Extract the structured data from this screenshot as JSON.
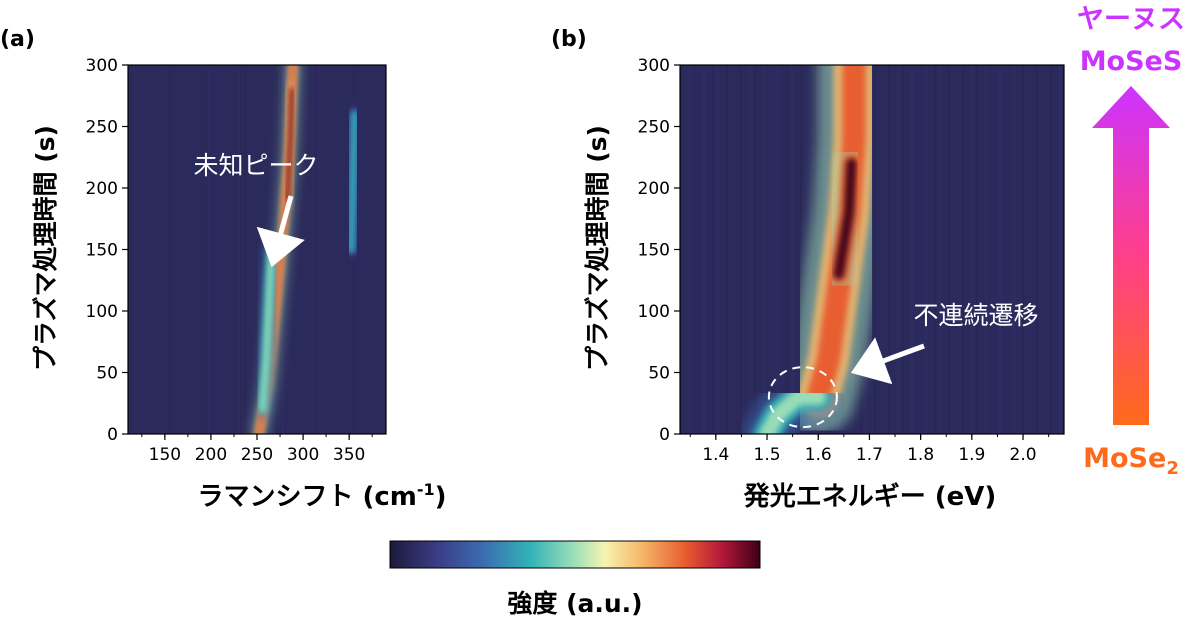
{
  "figure": {
    "colorbar_label": "強度 (a.u.)",
    "transition": {
      "top_line1": "ヤーヌス",
      "top_line2": "MoSeS",
      "bottom_base": "MoSe",
      "bottom_sub": "2",
      "top_color": "#cc33ff",
      "bottom_color": "#ff6a1a"
    }
  },
  "chart_data": [
    {
      "type": "heatmap",
      "panel_label": "(a)",
      "xlabel_base": "ラマンシフト (cm",
      "xlabel_sup": "-1",
      "xlabel_end": ")",
      "ylabel": "プラズマ処理時間 (s)",
      "xlim": [
        110,
        390
      ],
      "ylim": [
        0,
        300
      ],
      "xticks": [
        150,
        200,
        250,
        300,
        350
      ],
      "yticks": [
        0,
        50,
        100,
        150,
        200,
        250,
        300
      ],
      "annotation": "未知ピーク",
      "annotation_points_to": {
        "x": 264,
        "y": 125
      },
      "colormap": [
        "#1b1a3a",
        "#3a3a82",
        "#3b6bb0",
        "#33b3b8",
        "#9fe0b8",
        "#f6f3b0",
        "#f6b86a",
        "#e85a2e",
        "#b0173a",
        "#3d0014"
      ],
      "bands": [
        {
          "name": "main-peak",
          "points": [
            [
              252,
              0
            ],
            [
              262,
              40
            ],
            [
              270,
              100
            ],
            [
              279,
              170
            ],
            [
              285,
              230
            ],
            [
              289,
              300
            ]
          ],
          "width": 5,
          "intensity": 0.8
        },
        {
          "name": "main-peak-core",
          "points": [
            [
              283,
              190
            ],
            [
              286,
              235
            ],
            [
              288,
              280
            ]
          ],
          "width": 3,
          "intensity": 1.0
        },
        {
          "name": "unknown-peak",
          "points": [
            [
              256,
              20
            ],
            [
              260,
              60
            ],
            [
              264,
              125
            ],
            [
              266,
              150
            ]
          ],
          "width": 6,
          "intensity": 0.45
        },
        {
          "name": "low-peak-1",
          "points": [
            [
              236,
              0
            ],
            [
              236,
              25
            ]
          ],
          "width": 4,
          "intensity": 0.55
        },
        {
          "name": "low-peak-2",
          "points": [
            [
              248,
              0
            ],
            [
              248,
              25
            ]
          ],
          "width": 4,
          "intensity": 0.5
        },
        {
          "name": "side-band-350",
          "points": [
            [
              352,
              150
            ],
            [
              355,
              230
            ],
            [
              356,
              260
            ]
          ],
          "width": 6,
          "intensity": 0.3
        }
      ]
    },
    {
      "type": "heatmap",
      "panel_label": "(b)",
      "xlabel": "発光エネルギー (eV)",
      "ylabel": "プラズマ処理時間 (s)",
      "xlim": [
        1.33,
        2.08
      ],
      "ylim": [
        0,
        300
      ],
      "xticks": [
        1.4,
        1.5,
        1.6,
        1.7,
        1.8,
        1.9,
        2.0
      ],
      "xtick_labels": [
        "1.4",
        "1.5",
        "1.6",
        "1.7",
        "1.8",
        "1.9",
        "2.0"
      ],
      "yticks": [
        0,
        50,
        100,
        150,
        200,
        250,
        300
      ],
      "annotation": "不連続遷移",
      "annotation_points_to": {
        "x": 1.63,
        "y": 30
      },
      "colormap": [
        "#1b1a3a",
        "#3a3a82",
        "#3b6bb0",
        "#33b3b8",
        "#9fe0b8",
        "#f6f3b0",
        "#f6b86a",
        "#e85a2e",
        "#b0173a",
        "#3d0014"
      ],
      "bands": [
        {
          "name": "pl-main",
          "points": [
            [
              1.6,
              30
            ],
            [
              1.62,
              60
            ],
            [
              1.64,
              120
            ],
            [
              1.66,
              180
            ],
            [
              1.67,
              240
            ],
            [
              1.67,
              300
            ]
          ],
          "width": 0.045,
          "intensity": 0.78
        },
        {
          "name": "pl-core",
          "points": [
            [
              1.64,
              130
            ],
            [
              1.66,
              180
            ],
            [
              1.665,
              220
            ]
          ],
          "width": 0.02,
          "intensity": 0.95
        },
        {
          "name": "pl-low",
          "points": [
            [
              1.5,
              0
            ],
            [
              1.52,
              15
            ],
            [
              1.56,
              30
            ],
            [
              1.6,
              30
            ]
          ],
          "width": 0.03,
          "intensity": 0.45
        }
      ]
    }
  ]
}
